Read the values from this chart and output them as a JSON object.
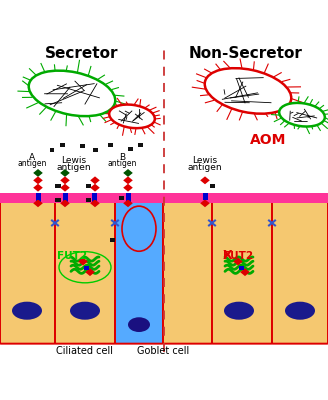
{
  "title_left": "Secretor",
  "title_right": "Non-Secretor",
  "bg_color": "#ffffff",
  "cell_fill": "#f5c870",
  "cell_border": "#dd0000",
  "mucosa_color": "#ff3399",
  "nucleus_color": "#1a1a8c",
  "goblet_color": "#55aaff",
  "green_color": "#00aa00",
  "red_color": "#dd0000",
  "fut2_color": "#00cc00",
  "fut2x_color": "#dd0000",
  "aom_color": "#dd0000",
  "red_diamond": "#dd0000",
  "green_diamond": "#005500",
  "blue_square": "#0000cc",
  "black_square": "#111111",
  "label_ciliated": "Ciliated cell",
  "label_goblet": "Goblet cell",
  "figw": 3.28,
  "figh": 4.0,
  "dpi": 100
}
